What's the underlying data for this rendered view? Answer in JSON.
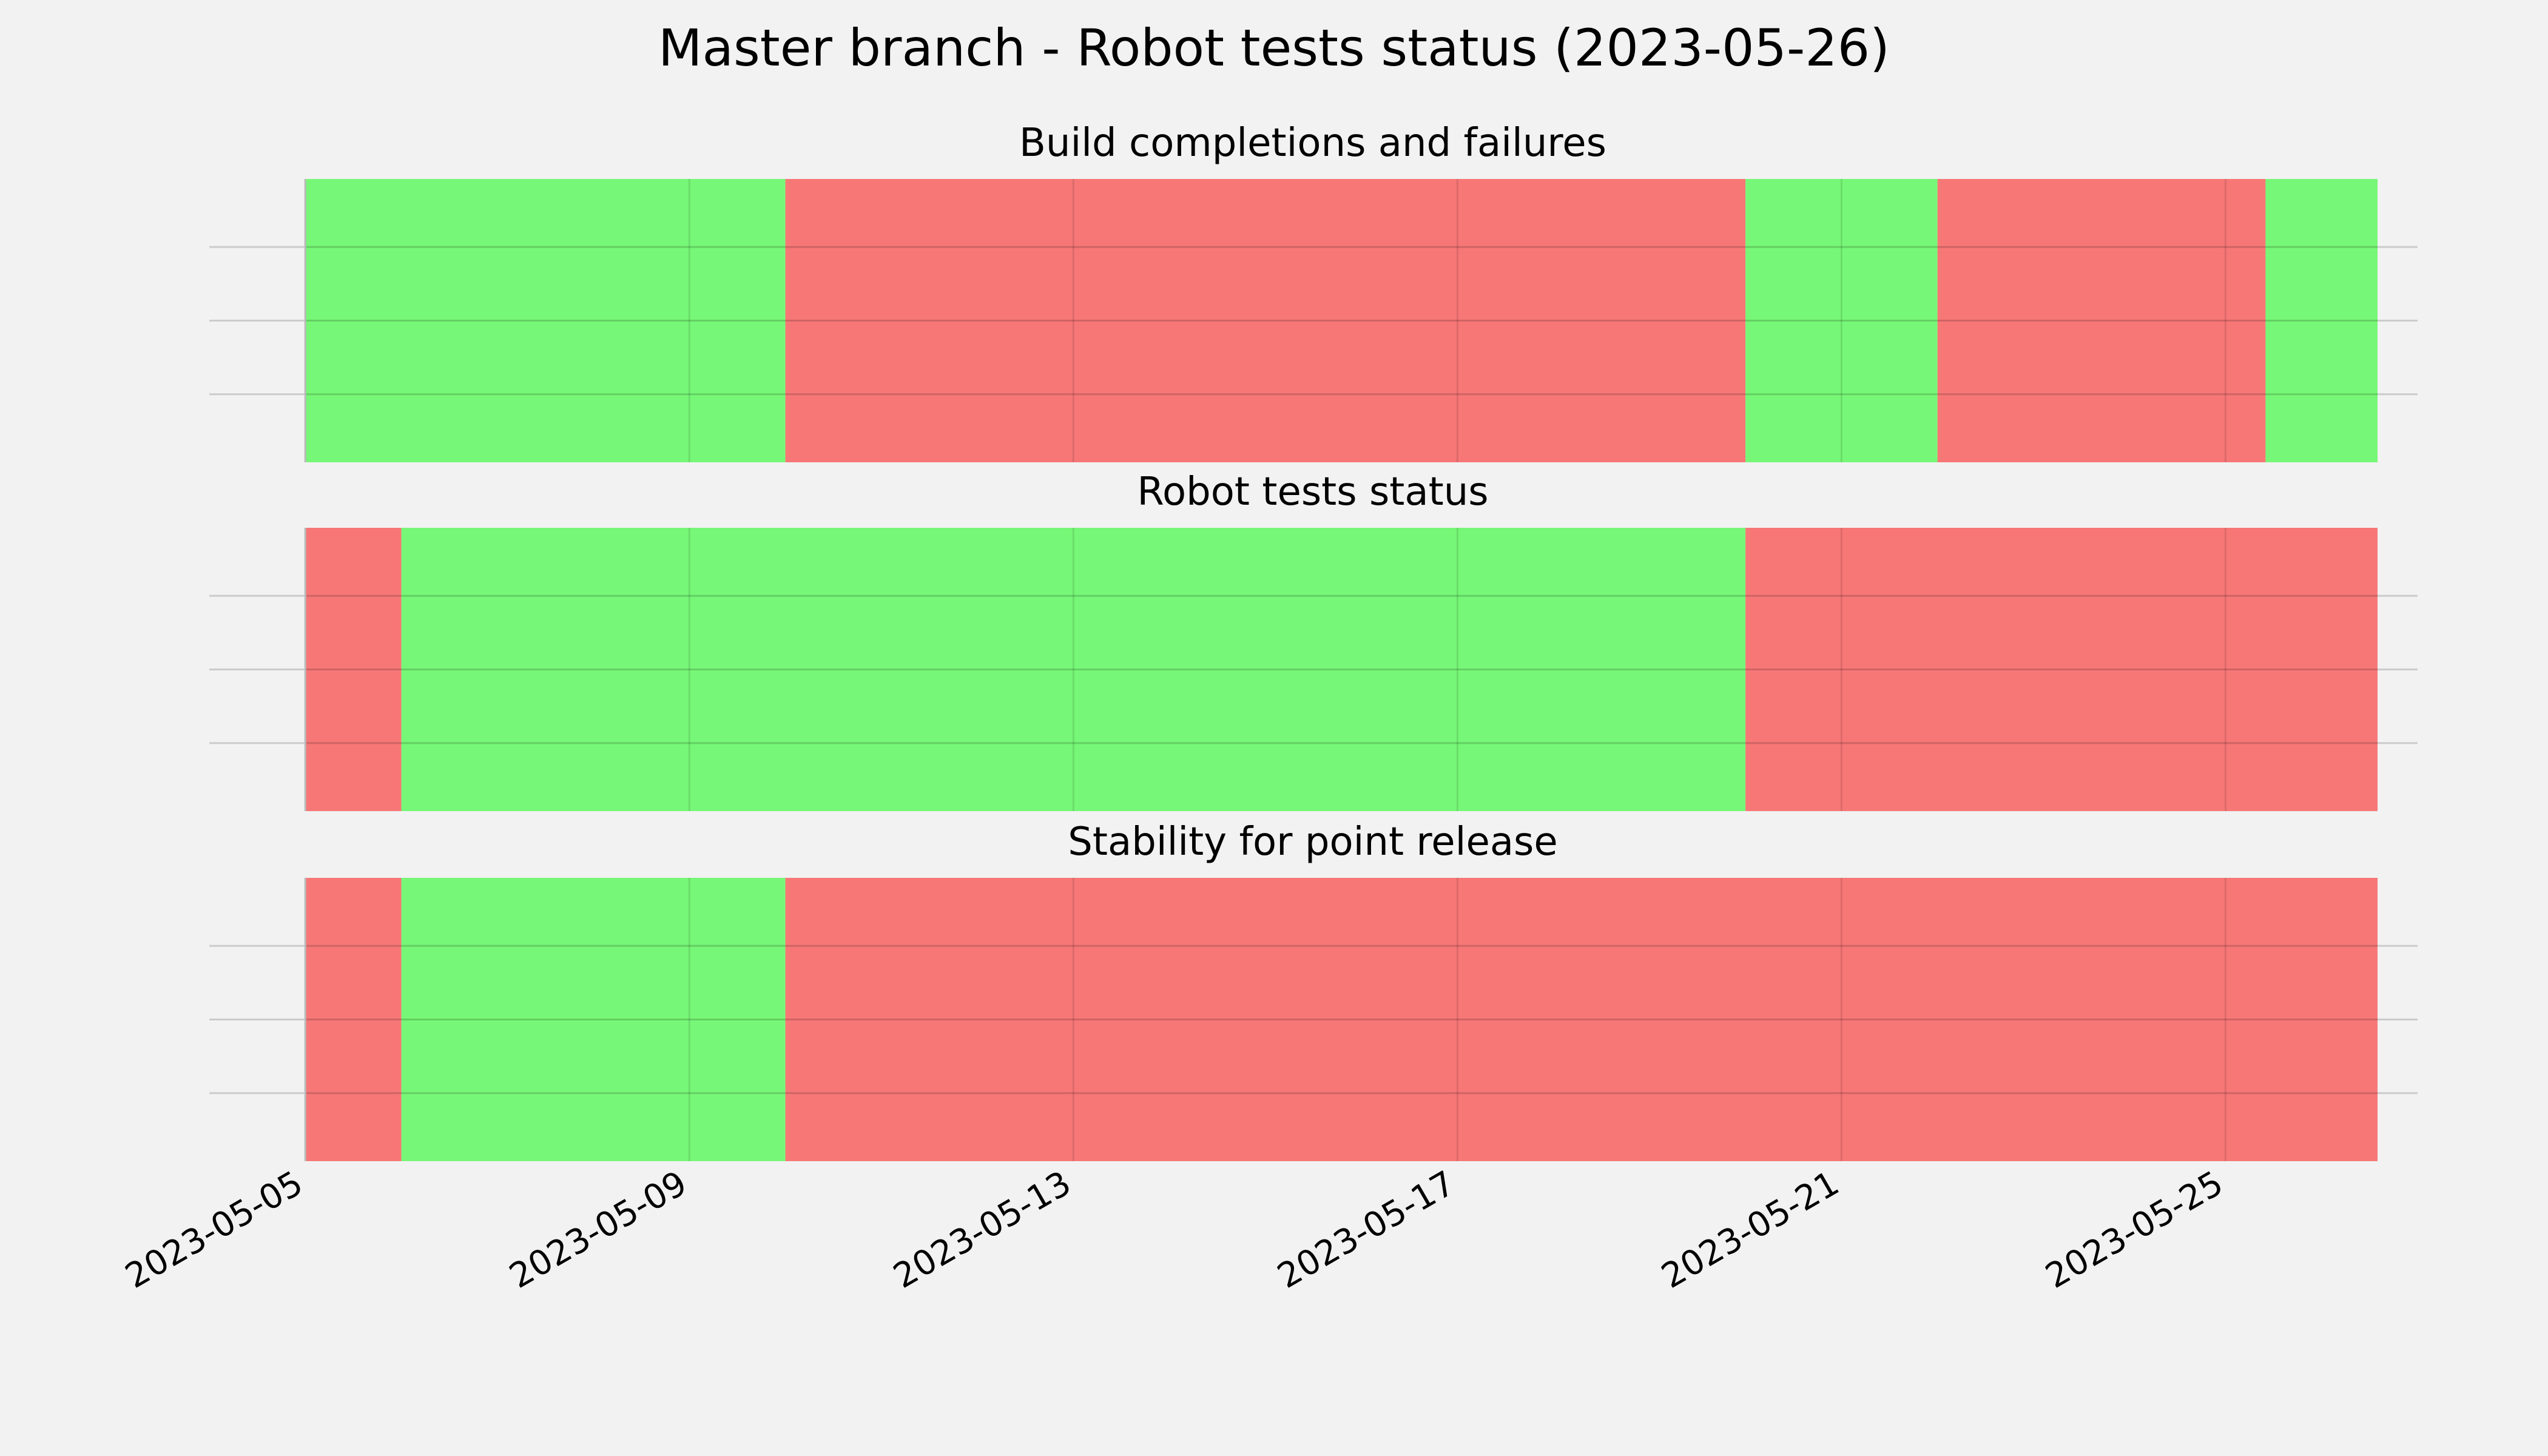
{
  "chart_data": {
    "type": "timeline",
    "title": "Master branch - Robot tests status (2023-05-26)",
    "xlabel": "",
    "x_range": [
      "2023-05-04T00:00",
      "2023-05-27T00:00"
    ],
    "x_ticks": [
      "2023-05-05",
      "2023-05-09",
      "2023-05-13",
      "2023-05-17",
      "2023-05-21",
      "2023-05-25"
    ],
    "grid": true,
    "colors": {
      "pass": "#77f777",
      "fail": "#f77777",
      "background": "#f2f2f2",
      "grid": "#cccccc"
    },
    "panels": [
      {
        "title": "Build completions and failures",
        "segments": [
          {
            "start": "2023-05-05T00:00",
            "end": "2023-05-10T00:00",
            "status": "pass"
          },
          {
            "start": "2023-05-10T00:00",
            "end": "2023-05-20T00:00",
            "status": "fail"
          },
          {
            "start": "2023-05-20T00:00",
            "end": "2023-05-22T00:00",
            "status": "pass"
          },
          {
            "start": "2023-05-22T00:00",
            "end": "2023-05-25T10:00",
            "status": "fail"
          },
          {
            "start": "2023-05-25T10:00",
            "end": "2023-05-26T14:00",
            "status": "pass"
          }
        ]
      },
      {
        "title": "Robot tests status",
        "segments": [
          {
            "start": "2023-05-05T00:00",
            "end": "2023-05-06T00:00",
            "status": "fail"
          },
          {
            "start": "2023-05-06T00:00",
            "end": "2023-05-20T00:00",
            "status": "pass"
          },
          {
            "start": "2023-05-20T00:00",
            "end": "2023-05-26T14:00",
            "status": "fail"
          }
        ]
      },
      {
        "title": "Stability for point release",
        "segments": [
          {
            "start": "2023-05-05T00:00",
            "end": "2023-05-06T00:00",
            "status": "fail"
          },
          {
            "start": "2023-05-06T00:00",
            "end": "2023-05-10T00:00",
            "status": "pass"
          },
          {
            "start": "2023-05-10T00:00",
            "end": "2023-05-26T14:00",
            "status": "fail"
          }
        ]
      }
    ]
  }
}
